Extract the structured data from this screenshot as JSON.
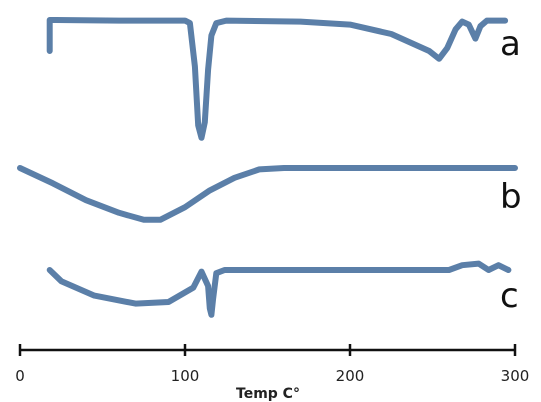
{
  "chart_data": {
    "type": "line",
    "title": "",
    "xlabel": "Temp C°",
    "ylabel": "",
    "xlim": [
      0,
      300
    ],
    "x_ticks": [
      "0",
      "100",
      "200",
      "300"
    ],
    "grid": false,
    "series": [
      {
        "name": "a",
        "color": "#5b7fa8",
        "points": [
          [
            18,
            1.0
          ],
          [
            18,
            0.0
          ],
          [
            22,
            0.0
          ],
          [
            60,
            0.02
          ],
          [
            100,
            0.02
          ],
          [
            103,
            0.1
          ],
          [
            106,
            1.5
          ],
          [
            108,
            3.4
          ],
          [
            110,
            3.8
          ],
          [
            112,
            3.3
          ],
          [
            114,
            1.6
          ],
          [
            116,
            0.5
          ],
          [
            119,
            0.1
          ],
          [
            125,
            0.02
          ],
          [
            170,
            0.05
          ],
          [
            200,
            0.15
          ],
          [
            225,
            0.45
          ],
          [
            248,
            1.0
          ],
          [
            254,
            1.25
          ],
          [
            259,
            0.9
          ],
          [
            264,
            0.3
          ],
          [
            268,
            0.05
          ],
          [
            272,
            0.15
          ],
          [
            276,
            0.6
          ],
          [
            279,
            0.2
          ],
          [
            283,
            0.02
          ],
          [
            294,
            0.02
          ]
        ]
      },
      {
        "name": "b",
        "color": "#5b7fa8",
        "points": [
          [
            0,
            0.0
          ],
          [
            20,
            0.55
          ],
          [
            40,
            1.15
          ],
          [
            60,
            1.6
          ],
          [
            75,
            1.85
          ],
          [
            85,
            1.85
          ],
          [
            100,
            1.4
          ],
          [
            115,
            0.8
          ],
          [
            130,
            0.35
          ],
          [
            145,
            0.05
          ],
          [
            160,
            0.0
          ],
          [
            200,
            0.0
          ],
          [
            250,
            0.0
          ],
          [
            300,
            0.0
          ]
        ]
      },
      {
        "name": "c",
        "color": "#5b7fa8",
        "points": [
          [
            18,
            0.0
          ],
          [
            25,
            0.35
          ],
          [
            45,
            0.8
          ],
          [
            70,
            1.05
          ],
          [
            90,
            1.0
          ],
          [
            105,
            0.55
          ],
          [
            110,
            0.05
          ],
          [
            114,
            0.5
          ],
          [
            115,
            1.2
          ],
          [
            116,
            1.4
          ],
          [
            117,
            0.9
          ],
          [
            119,
            0.1
          ],
          [
            124,
            0.0
          ],
          [
            180,
            0.0
          ],
          [
            260,
            0.0
          ],
          [
            268,
            -0.15
          ],
          [
            278,
            -0.2
          ],
          [
            284,
            0.0
          ],
          [
            290,
            -0.15
          ],
          [
            296,
            0.0
          ]
        ]
      }
    ],
    "labels": [
      "a",
      "b",
      "c"
    ]
  }
}
